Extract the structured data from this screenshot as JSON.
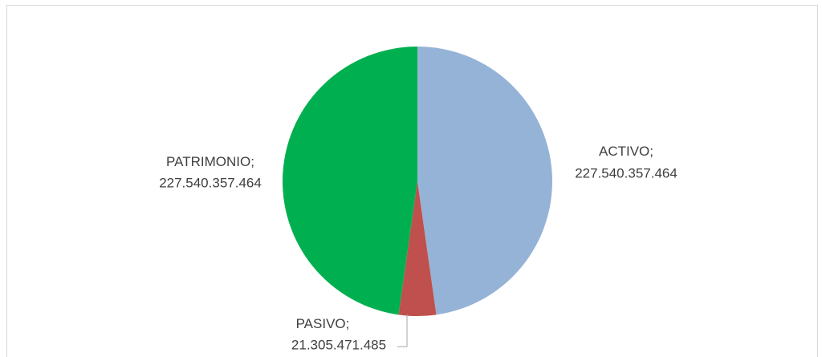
{
  "chart_data": {
    "type": "pie",
    "categories": [
      "ACTIVO",
      "PASIVO",
      "PATRIMONIO"
    ],
    "label_separator": ";",
    "values": [
      227540357464,
      21305471485,
      227540357464
    ],
    "value_labels": [
      "227.540.357.464",
      "21.305.471.485",
      "227.540.357.464"
    ],
    "colors": [
      "#95b3d7",
      "#c0504d",
      "#00b050"
    ]
  }
}
